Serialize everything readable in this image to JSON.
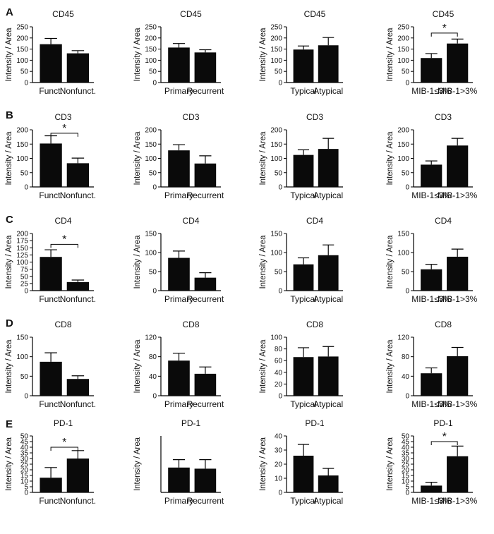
{
  "panels": [
    {
      "letter": "A"
    },
    {
      "letter": "B"
    },
    {
      "letter": "C"
    },
    {
      "letter": "D"
    },
    {
      "letter": "E"
    }
  ],
  "chart_data": [
    {
      "type": "bar",
      "title": "CD45",
      "ylabel": "Intensity / Area",
      "categories": [
        "Funct.",
        "Nonfunct."
      ],
      "values": [
        172,
        131
      ],
      "errors": [
        26,
        12
      ],
      "ylim": [
        0,
        250
      ],
      "yticks": [
        0,
        50,
        100,
        150,
        200,
        250
      ],
      "significance": null
    },
    {
      "type": "bar",
      "title": "CD45",
      "ylabel": "Intensity / Area",
      "categories": [
        "Primary",
        "Recurrent"
      ],
      "values": [
        157,
        135
      ],
      "errors": [
        18,
        12
      ],
      "ylim": [
        0,
        250
      ],
      "yticks": [
        0,
        50,
        100,
        150,
        200,
        250
      ],
      "significance": null
    },
    {
      "type": "bar",
      "title": "CD45",
      "ylabel": "Intensity / Area",
      "categories": [
        "Typical",
        "Atypical"
      ],
      "values": [
        148,
        167
      ],
      "errors": [
        16,
        35
      ],
      "ylim": [
        0,
        250
      ],
      "yticks": [
        0,
        50,
        100,
        150,
        200,
        250
      ],
      "significance": null
    },
    {
      "type": "bar",
      "title": "CD45",
      "ylabel": "Intensity / Area",
      "categories": [
        "MIB-1≤3%",
        "MIB-1>3%"
      ],
      "values": [
        110,
        175
      ],
      "errors": [
        20,
        20
      ],
      "ylim": [
        0,
        250
      ],
      "yticks": [
        0,
        50,
        100,
        150,
        200,
        250
      ],
      "significance": {
        "label": "*",
        "level": 222
      }
    },
    {
      "type": "bar",
      "title": "CD3",
      "ylabel": "Intensity / Area",
      "categories": [
        "Funct.",
        "Nonfunct."
      ],
      "values": [
        152,
        83
      ],
      "errors": [
        27,
        18
      ],
      "ylim": [
        0,
        200
      ],
      "yticks": [
        0,
        50,
        100,
        150,
        200
      ],
      "significance": {
        "label": "*",
        "level": 188
      }
    },
    {
      "type": "bar",
      "title": "CD3",
      "ylabel": "Intensity / Area",
      "categories": [
        "Primary",
        "Recurrent"
      ],
      "values": [
        128,
        82
      ],
      "errors": [
        20,
        27
      ],
      "ylim": [
        0,
        200
      ],
      "yticks": [
        0,
        50,
        100,
        150,
        200
      ],
      "significance": null
    },
    {
      "type": "bar",
      "title": "CD3",
      "ylabel": "Intensity / Area",
      "categories": [
        "Typical",
        "Atypical"
      ],
      "values": [
        112,
        133
      ],
      "errors": [
        18,
        37
      ],
      "ylim": [
        0,
        200
      ],
      "yticks": [
        0,
        50,
        100,
        150,
        200
      ],
      "significance": null
    },
    {
      "type": "bar",
      "title": "CD3",
      "ylabel": "Intensity / Area",
      "categories": [
        "MIB-1≤3%",
        "MIB-1>3%"
      ],
      "values": [
        78,
        145
      ],
      "errors": [
        13,
        25
      ],
      "ylim": [
        0,
        200
      ],
      "yticks": [
        0,
        50,
        100,
        150,
        200
      ],
      "significance": null
    },
    {
      "type": "bar",
      "title": "CD4",
      "ylabel": "Intensity / Area",
      "categories": [
        "Funct.",
        "Nonfunct."
      ],
      "values": [
        118,
        30
      ],
      "errors": [
        25,
        7
      ],
      "ylim": [
        0,
        200
      ],
      "yticks": [
        0,
        25,
        50,
        75,
        100,
        125,
        150,
        175,
        200
      ],
      "significance": {
        "label": "*",
        "level": 162
      }
    },
    {
      "type": "bar",
      "title": "CD4",
      "ylabel": "Intensity / Area",
      "categories": [
        "Primary",
        "Recurrent"
      ],
      "values": [
        86,
        34
      ],
      "errors": [
        18,
        13
      ],
      "ylim": [
        0,
        150
      ],
      "yticks": [
        0,
        50,
        100,
        150
      ],
      "significance": null
    },
    {
      "type": "bar",
      "title": "CD4",
      "ylabel": "Intensity / Area",
      "categories": [
        "Typical",
        "Atypical"
      ],
      "values": [
        69,
        93
      ],
      "errors": [
        17,
        27
      ],
      "ylim": [
        0,
        150
      ],
      "yticks": [
        0,
        50,
        100,
        150
      ],
      "significance": null
    },
    {
      "type": "bar",
      "title": "CD4",
      "ylabel": "Intensity / Area",
      "categories": [
        "MIB-1≤3%",
        "MIB-1>3%"
      ],
      "values": [
        56,
        89
      ],
      "errors": [
        13,
        20
      ],
      "ylim": [
        0,
        150
      ],
      "yticks": [
        0,
        50,
        100,
        150
      ],
      "significance": null
    },
    {
      "type": "bar",
      "title": "CD8",
      "ylabel": "Intensity / Area",
      "categories": [
        "Funct.",
        "Nonfunct."
      ],
      "values": [
        87,
        43
      ],
      "errors": [
        23,
        8
      ],
      "ylim": [
        0,
        150
      ],
      "yticks": [
        0,
        50,
        100,
        150
      ],
      "significance": null
    },
    {
      "type": "bar",
      "title": "CD8",
      "ylabel": "Intensity / Area",
      "categories": [
        "Primary",
        "Recurrent"
      ],
      "values": [
        72,
        45
      ],
      "errors": [
        15,
        14
      ],
      "ylim": [
        0,
        120
      ],
      "yticks": [
        0,
        40,
        80,
        120
      ],
      "significance": null
    },
    {
      "type": "bar",
      "title": "CD8",
      "ylabel": "Intensity / Area",
      "categories": [
        "Typical",
        "Atypical"
      ],
      "values": [
        66,
        67
      ],
      "errors": [
        16,
        17
      ],
      "ylim": [
        0,
        100
      ],
      "yticks": [
        0,
        20,
        40,
        60,
        80,
        100
      ],
      "significance": null
    },
    {
      "type": "bar",
      "title": "CD8",
      "ylabel": "Intensity / Area",
      "categories": [
        "MIB-1≤3%",
        "MIB-1>3%"
      ],
      "values": [
        46,
        81
      ],
      "errors": [
        11,
        18
      ],
      "ylim": [
        0,
        120
      ],
      "yticks": [
        0,
        40,
        80,
        120
      ],
      "significance": null
    },
    {
      "type": "bar",
      "title": "PD-1",
      "ylabel": "Intensity / Area",
      "categories": [
        "Funct.",
        "Nonfunct."
      ],
      "values": [
        13,
        30
      ],
      "errors": [
        9,
        7
      ],
      "ylim": [
        0,
        50
      ],
      "yticks": [
        0,
        5,
        10,
        15,
        20,
        25,
        30,
        35,
        40,
        45,
        50
      ],
      "significance": {
        "label": "*",
        "level": 40
      }
    },
    {
      "type": "bar",
      "title": "PD-1",
      "ylabel": "Intensity / Area",
      "categories": [
        "Primary",
        "Recurrent"
      ],
      "values": [
        22,
        21
      ],
      "errors": [
        7,
        8
      ],
      "ylim": [
        0,
        50
      ],
      "yticks": [],
      "significance": null
    },
    {
      "type": "bar",
      "title": "PD-1",
      "ylabel": "Intensity / Area",
      "categories": [
        "Typical",
        "Atypical"
      ],
      "values": [
        26,
        12
      ],
      "errors": [
        8,
        5
      ],
      "ylim": [
        0,
        40
      ],
      "yticks": [
        0,
        10,
        20,
        30,
        40
      ],
      "significance": null
    },
    {
      "type": "bar",
      "title": "PD-1",
      "ylabel": "Intensity / Area",
      "categories": [
        "MIB-1≤3%",
        "MIB-1>3%"
      ],
      "values": [
        6,
        32
      ],
      "errors": [
        3,
        9
      ],
      "ylim": [
        0,
        50
      ],
      "yticks": [
        0,
        5,
        10,
        15,
        20,
        25,
        30,
        35,
        40,
        45,
        50
      ],
      "significance": {
        "label": "*",
        "level": 45
      }
    }
  ]
}
